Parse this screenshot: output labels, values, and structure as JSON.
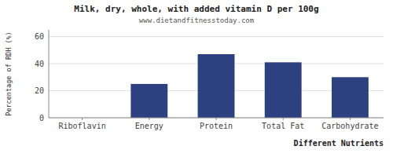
{
  "chart_data": {
    "type": "bar",
    "title": "Milk, dry, whole, with added vitamin D per 100g",
    "subtitle": "www.dietandfitnesstoday.com",
    "xlabel": "Different Nutrients",
    "ylabel": "Percentage of RDH (%)",
    "categories": [
      "Riboflavin",
      "Energy",
      "Protein",
      "Total Fat",
      "Carbohydrate"
    ],
    "values": [
      0,
      25,
      47,
      41,
      30
    ],
    "color": "#2d4080",
    "ylim": [
      0,
      65
    ],
    "yticks": [
      0,
      20,
      40,
      60
    ],
    "grid": true
  }
}
